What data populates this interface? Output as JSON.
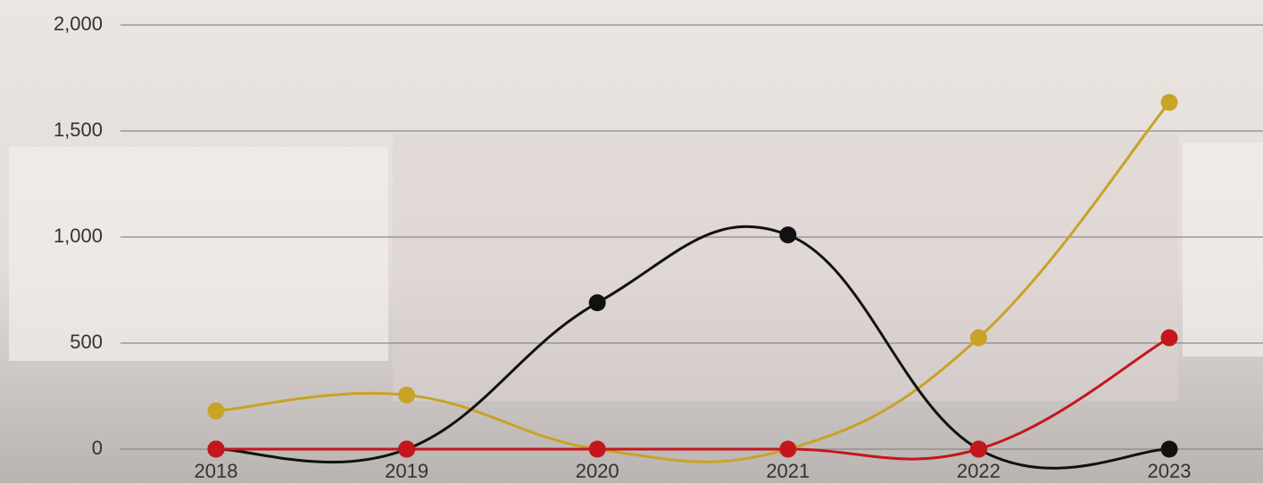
{
  "chart_data": {
    "type": "line",
    "categories": [
      "2018",
      "2019",
      "2020",
      "2021",
      "2022",
      "2023"
    ],
    "series": [
      {
        "color": "#c9a227",
        "values": [
          180,
          255,
          0,
          0,
          525,
          1635
        ]
      },
      {
        "color": "#111111",
        "values": [
          0,
          0,
          690,
          1010,
          0,
          0
        ]
      },
      {
        "color": "#c4161c",
        "values": [
          0,
          0,
          0,
          0,
          0,
          525
        ]
      }
    ],
    "ylim": [
      0,
      2000
    ],
    "yticks": [
      0,
      500,
      {
        "value": 1000,
        "label": "1,000"
      },
      {
        "value": 1500,
        "label": "1,500"
      },
      {
        "value": 2000,
        "label": "2,000"
      }
    ],
    "grid": true
  }
}
